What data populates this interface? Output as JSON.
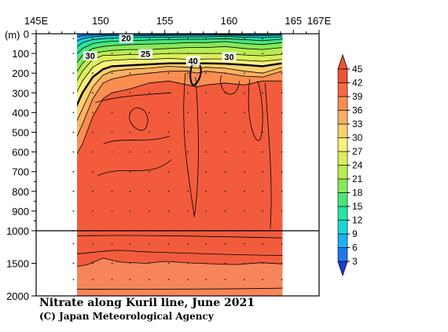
{
  "chart_data": {
    "type": "heatmap",
    "title": "Nitrate along Kuril line, June 2021",
    "credit": "(C) Japan Meteorological Agency",
    "xlabel": "",
    "ylabel": "(m)",
    "x_ticks": [
      "145E",
      "150",
      "155",
      "160",
      "165",
      "167E"
    ],
    "x_tick_values": [
      145,
      150,
      155,
      160,
      165,
      167
    ],
    "xlim": [
      145,
      167
    ],
    "y_ticks_upper": [
      "0",
      "100",
      "200",
      "300",
      "400",
      "500",
      "600",
      "700",
      "800",
      "900",
      "1000"
    ],
    "y_ticks_lower": [
      "1500",
      "2000"
    ],
    "ylim": [
      0,
      2000
    ],
    "y_break": 1000,
    "colorbar": {
      "levels": [
        "3",
        "6",
        "9",
        "12",
        "15",
        "18",
        "21",
        "24",
        "27",
        "30",
        "33",
        "36",
        "39",
        "42",
        "45"
      ],
      "colors": [
        "#1d3cd9",
        "#1e78e8",
        "#19b2f0",
        "#1ad6d6",
        "#28e3a2",
        "#4ae57a",
        "#86e85a",
        "#b8ec52",
        "#dcef5c",
        "#f5f17a",
        "#fbd16e",
        "#fbb063",
        "#fa8e52",
        "#f56a42",
        "#ee5436"
      ]
    },
    "contour_labels": [
      "20",
      "25",
      "30",
      "40",
      "30"
    ],
    "stations_lon": [
      147.9,
      149.4,
      150.9,
      152.3,
      153.8,
      155.3,
      156.8,
      158.2,
      159.7,
      161.2,
      162.6,
      164.1
    ],
    "colors": {
      "deep": "#f25c3d",
      "bottom": "#f7855a",
      "border": "#000000"
    }
  }
}
